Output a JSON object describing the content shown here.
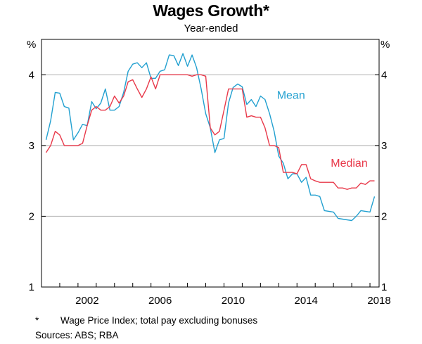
{
  "chart_data": {
    "type": "line",
    "title": "Wages Growth*",
    "subtitle": "Year-ended",
    "ylabel_left": "%",
    "ylabel_right": "%",
    "ylim": [
      1,
      4.5
    ],
    "yticks": [
      1,
      2,
      3,
      4
    ],
    "xlim": [
      2000.0,
      2018.5
    ],
    "xticks": [
      2002,
      2006,
      2010,
      2014,
      2018
    ],
    "grid": true,
    "series": [
      {
        "name": "Mean",
        "color": "#22a0d0",
        "label_position": "right of series near 2011.5–2013",
        "points": [
          [
            2000.25,
            3.08
          ],
          [
            2000.5,
            3.35
          ],
          [
            2000.75,
            3.75
          ],
          [
            2001.0,
            3.74
          ],
          [
            2001.25,
            3.55
          ],
          [
            2001.5,
            3.53
          ],
          [
            2001.75,
            3.08
          ],
          [
            2002.0,
            3.18
          ],
          [
            2002.25,
            3.3
          ],
          [
            2002.5,
            3.28
          ],
          [
            2002.75,
            3.62
          ],
          [
            2003.0,
            3.52
          ],
          [
            2003.25,
            3.6
          ],
          [
            2003.5,
            3.8
          ],
          [
            2003.75,
            3.5
          ],
          [
            2004.0,
            3.5
          ],
          [
            2004.25,
            3.55
          ],
          [
            2004.5,
            3.75
          ],
          [
            2004.75,
            4.05
          ],
          [
            2005.0,
            4.15
          ],
          [
            2005.25,
            4.17
          ],
          [
            2005.5,
            4.1
          ],
          [
            2005.75,
            4.17
          ],
          [
            2006.0,
            3.95
          ],
          [
            2006.25,
            3.95
          ],
          [
            2006.5,
            4.05
          ],
          [
            2006.75,
            4.07
          ],
          [
            2007.0,
            4.28
          ],
          [
            2007.25,
            4.27
          ],
          [
            2007.5,
            4.13
          ],
          [
            2007.75,
            4.3
          ],
          [
            2008.0,
            4.12
          ],
          [
            2008.25,
            4.28
          ],
          [
            2008.5,
            4.1
          ],
          [
            2008.75,
            3.8
          ],
          [
            2009.0,
            3.45
          ],
          [
            2009.25,
            3.25
          ],
          [
            2009.5,
            2.9
          ],
          [
            2009.75,
            3.08
          ],
          [
            2010.0,
            3.1
          ],
          [
            2010.25,
            3.6
          ],
          [
            2010.5,
            3.82
          ],
          [
            2010.75,
            3.87
          ],
          [
            2011.0,
            3.83
          ],
          [
            2011.25,
            3.58
          ],
          [
            2011.5,
            3.65
          ],
          [
            2011.75,
            3.55
          ],
          [
            2012.0,
            3.7
          ],
          [
            2012.25,
            3.65
          ],
          [
            2012.5,
            3.45
          ],
          [
            2012.75,
            3.2
          ],
          [
            2013.0,
            2.85
          ],
          [
            2013.25,
            2.75
          ],
          [
            2013.5,
            2.53
          ],
          [
            2013.75,
            2.6
          ],
          [
            2014.0,
            2.6
          ],
          [
            2014.25,
            2.48
          ],
          [
            2014.5,
            2.55
          ],
          [
            2014.75,
            2.3
          ],
          [
            2015.0,
            2.3
          ],
          [
            2015.25,
            2.28
          ],
          [
            2015.5,
            2.08
          ],
          [
            2015.75,
            2.07
          ],
          [
            2016.0,
            2.06
          ],
          [
            2016.25,
            1.97
          ],
          [
            2016.5,
            1.96
          ],
          [
            2016.75,
            1.95
          ],
          [
            2017.0,
            1.94
          ],
          [
            2017.25,
            2.0
          ],
          [
            2017.5,
            2.08
          ],
          [
            2017.75,
            2.07
          ],
          [
            2018.0,
            2.06
          ],
          [
            2018.25,
            2.28
          ]
        ]
      },
      {
        "name": "Median",
        "color": "#e8394a",
        "label_position": "above series near 2015–2017",
        "points": [
          [
            2000.25,
            2.9
          ],
          [
            2000.5,
            3.0
          ],
          [
            2000.75,
            3.2
          ],
          [
            2001.0,
            3.15
          ],
          [
            2001.25,
            3.0
          ],
          [
            2001.5,
            3.0
          ],
          [
            2001.75,
            3.0
          ],
          [
            2002.0,
            3.0
          ],
          [
            2002.25,
            3.03
          ],
          [
            2002.5,
            3.28
          ],
          [
            2002.75,
            3.5
          ],
          [
            2003.0,
            3.55
          ],
          [
            2003.25,
            3.5
          ],
          [
            2003.5,
            3.5
          ],
          [
            2003.75,
            3.55
          ],
          [
            2004.0,
            3.7
          ],
          [
            2004.25,
            3.6
          ],
          [
            2004.5,
            3.7
          ],
          [
            2004.75,
            3.9
          ],
          [
            2005.0,
            3.93
          ],
          [
            2005.25,
            3.8
          ],
          [
            2005.5,
            3.68
          ],
          [
            2005.75,
            3.8
          ],
          [
            2006.0,
            3.97
          ],
          [
            2006.25,
            3.8
          ],
          [
            2006.5,
            4.0
          ],
          [
            2006.75,
            4.0
          ],
          [
            2007.0,
            4.0
          ],
          [
            2007.25,
            4.0
          ],
          [
            2007.5,
            4.0
          ],
          [
            2007.75,
            4.0
          ],
          [
            2008.0,
            4.0
          ],
          [
            2008.25,
            3.98
          ],
          [
            2008.5,
            4.0
          ],
          [
            2008.75,
            4.0
          ],
          [
            2009.0,
            3.98
          ],
          [
            2009.25,
            3.25
          ],
          [
            2009.5,
            3.15
          ],
          [
            2009.75,
            3.2
          ],
          [
            2010.0,
            3.5
          ],
          [
            2010.25,
            3.8
          ],
          [
            2010.5,
            3.8
          ],
          [
            2010.75,
            3.8
          ],
          [
            2011.0,
            3.8
          ],
          [
            2011.25,
            3.4
          ],
          [
            2011.5,
            3.42
          ],
          [
            2011.75,
            3.4
          ],
          [
            2012.0,
            3.4
          ],
          [
            2012.25,
            3.25
          ],
          [
            2012.5,
            3.0
          ],
          [
            2012.75,
            3.0
          ],
          [
            2013.0,
            2.97
          ],
          [
            2013.25,
            2.62
          ],
          [
            2013.5,
            2.62
          ],
          [
            2013.75,
            2.62
          ],
          [
            2014.0,
            2.6
          ],
          [
            2014.25,
            2.73
          ],
          [
            2014.5,
            2.73
          ],
          [
            2014.75,
            2.53
          ],
          [
            2015.0,
            2.5
          ],
          [
            2015.25,
            2.48
          ],
          [
            2015.5,
            2.48
          ],
          [
            2015.75,
            2.48
          ],
          [
            2016.0,
            2.48
          ],
          [
            2016.25,
            2.4
          ],
          [
            2016.5,
            2.4
          ],
          [
            2016.75,
            2.38
          ],
          [
            2017.0,
            2.4
          ],
          [
            2017.25,
            2.4
          ],
          [
            2017.5,
            2.47
          ],
          [
            2017.75,
            2.45
          ],
          [
            2018.0,
            2.5
          ],
          [
            2018.25,
            2.5
          ]
        ]
      }
    ]
  },
  "footnote": {
    "marker": "*",
    "text": "Wage Price Index; total pay excluding bonuses"
  },
  "sources": "Sources:   ABS; RBA"
}
